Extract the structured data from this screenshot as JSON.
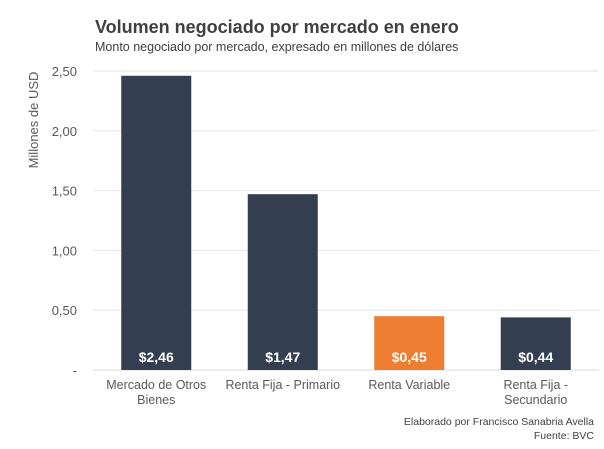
{
  "chart_data": {
    "type": "bar",
    "title": "Volumen negociado por mercado en enero",
    "subtitle": "Monto negociado por mercado, expresado en millones de dólares",
    "xlabel": "",
    "ylabel": "Millones de USD",
    "ylim": [
      0,
      2.5
    ],
    "yticks": [
      0,
      0.5,
      1.0,
      1.5,
      2.0,
      2.5
    ],
    "ytick_labels": [
      "-",
      "0,50",
      "1,00",
      "1,50",
      "2,00",
      "2,50"
    ],
    "grid": true,
    "categories": [
      [
        "Mercado de Otros",
        "Bienes"
      ],
      [
        "Renta Fija - Primario"
      ],
      [
        "Renta Variable"
      ],
      [
        "Renta Fija -",
        "Secundario"
      ]
    ],
    "values": [
      2.46,
      1.47,
      0.45,
      0.44
    ],
    "data_labels": [
      "$2,46",
      "$1,47",
      "$0,45",
      "$0,44"
    ],
    "colors": [
      "#333f50",
      "#333f50",
      "#ed7d31",
      "#333f50"
    ]
  },
  "footer": {
    "credit": "Elaborado por Francisco Sanabria Avella",
    "source": "Fuente: BVC"
  }
}
